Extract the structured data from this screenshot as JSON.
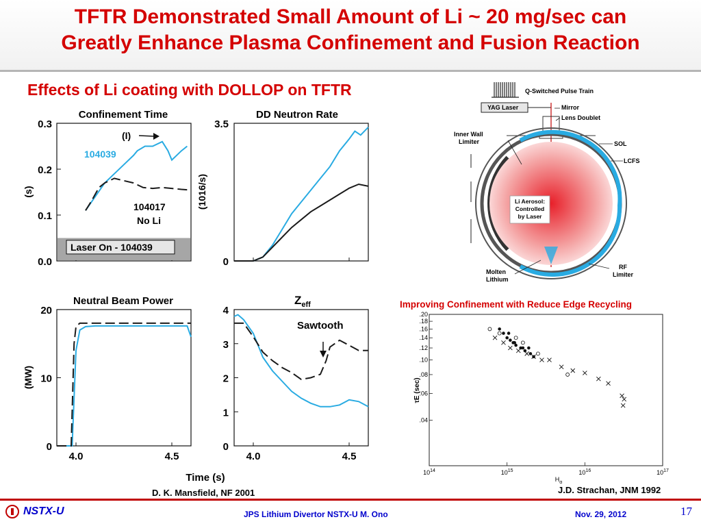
{
  "slide": {
    "title_line1": "TFTR Demonstrated Small Amount of Li ~ 20 mg/sec can",
    "title_line2": "Greatly Enhance Plasma Confinement and Fusion Reaction",
    "subtitle": "Effects of Li coating with DOLLOP on TFTR",
    "citation_left": "D. K. Mansfield, NF 2001",
    "citation_right": "J.D. Strachan, JNM 1992",
    "recycling_caption": "Improving Confinement with Reduce Edge Recycling",
    "footer_logo": "NSTX-U",
    "footer_center": "JPS Lithium Divertor NSTX-U M. Ono",
    "footer_date": "Nov. 29, 2012",
    "page_number": "17"
  },
  "colors": {
    "title": "#d40000",
    "blue": "#29abe2",
    "black": "#1a1a1a",
    "footer_blue": "#0000cc"
  },
  "shared_x": {
    "label": "Time (s)",
    "ticks": [
      "4.0",
      "4.5"
    ]
  },
  "diagram": {
    "labels": [
      "Q-Switched Pulse Train",
      "YAG Laser",
      "Mirror",
      "Lens Doublet",
      "Inner Wall",
      "Limiter",
      "SOL",
      "LCFS",
      "Li Aerosol:",
      "Controlled",
      "by Laser",
      "Molten",
      "Lithium",
      "RF",
      "Limiter"
    ]
  },
  "chart_data": [
    {
      "type": "line",
      "title": "Confinement Time",
      "ylabel": "(s)",
      "ylim": [
        0,
        0.3
      ],
      "yticks": [
        "0.0",
        "0.1",
        "0.2",
        "0.3"
      ],
      "xlim": [
        3.9,
        4.6
      ],
      "annotations": [
        "(I)",
        "104039",
        "104017",
        "No Li"
      ],
      "box_label": "Laser On - 104039",
      "series": [
        {
          "name": "104039",
          "color": "#29abe2",
          "dash": false,
          "x": [
            4.05,
            4.1,
            4.15,
            4.2,
            4.25,
            4.3,
            4.32,
            4.36,
            4.4,
            4.45,
            4.48,
            4.5,
            4.55,
            4.58
          ],
          "y": [
            0.11,
            0.14,
            0.17,
            0.19,
            0.21,
            0.23,
            0.24,
            0.25,
            0.25,
            0.26,
            0.24,
            0.22,
            0.24,
            0.25
          ]
        },
        {
          "name": "104017",
          "color": "#1a1a1a",
          "dash": true,
          "x": [
            4.05,
            4.08,
            4.12,
            4.15,
            4.2,
            4.25,
            4.3,
            4.35,
            4.4,
            4.45,
            4.5,
            4.55,
            4.58
          ],
          "y": [
            0.11,
            0.13,
            0.16,
            0.17,
            0.18,
            0.175,
            0.17,
            0.16,
            0.158,
            0.16,
            0.158,
            0.156,
            0.155
          ]
        }
      ]
    },
    {
      "type": "line",
      "title": "DD Neutron Rate",
      "ylabel": "(1016/s)",
      "ylim": [
        0,
        3.5
      ],
      "yticks": [
        "0",
        "3.5"
      ],
      "xlim": [
        3.9,
        4.6
      ],
      "series": [
        {
          "name": "Li",
          "color": "#29abe2",
          "dash": false,
          "x": [
            3.9,
            4.0,
            4.05,
            4.1,
            4.15,
            4.2,
            4.25,
            4.3,
            4.35,
            4.4,
            4.45,
            4.5,
            4.53,
            4.56,
            4.6
          ],
          "y": [
            0.0,
            0.0,
            0.1,
            0.4,
            0.8,
            1.2,
            1.5,
            1.8,
            2.1,
            2.4,
            2.8,
            3.1,
            3.3,
            3.2,
            3.4
          ]
        },
        {
          "name": "No Li",
          "color": "#1a1a1a",
          "dash": false,
          "x": [
            3.9,
            4.0,
            4.05,
            4.1,
            4.15,
            4.2,
            4.25,
            4.3,
            4.35,
            4.4,
            4.45,
            4.5,
            4.55,
            4.6
          ],
          "y": [
            0.0,
            0.0,
            0.1,
            0.35,
            0.6,
            0.85,
            1.05,
            1.25,
            1.4,
            1.55,
            1.7,
            1.85,
            1.95,
            1.9
          ]
        }
      ]
    },
    {
      "type": "line",
      "title": "Neutral Beam Power",
      "ylabel": "(MW)",
      "ylim": [
        0,
        20
      ],
      "yticks": [
        "0",
        "10",
        "20"
      ],
      "xlim": [
        3.9,
        4.6
      ],
      "series": [
        {
          "name": "104039",
          "color": "#29abe2",
          "dash": false,
          "x": [
            3.9,
            3.98,
            4.0,
            4.02,
            4.05,
            4.1,
            4.2,
            4.3,
            4.4,
            4.5,
            4.58,
            4.6
          ],
          "y": [
            0,
            0,
            14,
            17,
            17.5,
            17.6,
            17.6,
            17.6,
            17.6,
            17.6,
            17.6,
            16
          ]
        },
        {
          "name": "104017",
          "color": "#1a1a1a",
          "dash": true,
          "x": [
            3.9,
            3.975,
            3.99,
            4.0,
            4.02,
            4.1,
            4.2,
            4.3,
            4.4,
            4.5,
            4.6
          ],
          "y": [
            0,
            0,
            15,
            17.5,
            18,
            18,
            18,
            18,
            18,
            18,
            18
          ]
        }
      ]
    },
    {
      "type": "line",
      "title": "Zeff",
      "ylim": [
        0,
        4
      ],
      "yticks": [
        "0",
        "1",
        "2",
        "3",
        "4"
      ],
      "xlim": [
        3.9,
        4.6
      ],
      "annotations": [
        "Sawtooth"
      ],
      "series": [
        {
          "name": "104039",
          "color": "#29abe2",
          "dash": false,
          "x": [
            3.9,
            3.92,
            3.95,
            4.0,
            4.05,
            4.1,
            4.15,
            4.2,
            4.25,
            4.3,
            4.35,
            4.4,
            4.45,
            4.5,
            4.55,
            4.6
          ],
          "y": [
            3.8,
            3.85,
            3.7,
            3.3,
            2.6,
            2.2,
            1.9,
            1.6,
            1.4,
            1.25,
            1.15,
            1.15,
            1.2,
            1.35,
            1.3,
            1.15
          ]
        },
        {
          "name": "104017",
          "color": "#1a1a1a",
          "dash": true,
          "x": [
            3.9,
            3.95,
            4.0,
            4.05,
            4.1,
            4.15,
            4.2,
            4.25,
            4.3,
            4.35,
            4.38,
            4.4,
            4.45,
            4.5,
            4.55,
            4.6
          ],
          "y": [
            3.6,
            3.6,
            3.2,
            2.75,
            2.5,
            2.3,
            2.15,
            1.95,
            2.0,
            2.1,
            2.5,
            2.9,
            3.1,
            2.95,
            2.8,
            2.8
          ]
        }
      ]
    },
    {
      "type": "scatter",
      "ylabel": "τE (sec)",
      "xlabel": "Hα",
      "xscale": "log",
      "yscale": "log",
      "xlim": [
        100000000000000.0,
        1e+17
      ],
      "ylim": [
        0.02,
        0.2
      ],
      "xticks": [
        "1014",
        "1015",
        "1016",
        "1017"
      ],
      "yticks": [
        ".20",
        ".18",
        ".16",
        ".14",
        ".12",
        ".10",
        ".08",
        ".06",
        ".04"
      ],
      "series": [
        {
          "name": "filled",
          "marker": "dot",
          "x": [
            800000000000000.0,
            900000000000000.0,
            1000000000000000.0,
            1100000000000000.0,
            1200000000000000.0,
            1300000000000000.0,
            1500000000000000.0,
            1700000000000000.0,
            2000000000000000.0,
            2200000000000000.0,
            1050000000000000.0,
            1250000000000000.0,
            1600000000000000.0,
            1900000000000000.0
          ],
          "y": [
            0.16,
            0.15,
            0.14,
            0.135,
            0.13,
            0.125,
            0.12,
            0.115,
            0.11,
            0.105,
            0.15,
            0.13,
            0.12,
            0.12
          ]
        },
        {
          "name": "cross",
          "marker": "x",
          "x": [
            700000000000000.0,
            900000000000000.0,
            1100000000000000.0,
            1400000000000000.0,
            1800000000000000.0,
            2200000000000000.0,
            2800000000000000.0,
            3500000000000000.0,
            5000000000000000.0,
            7000000000000000.0,
            1e+16,
            1.5e+16,
            2e+16,
            3e+16,
            3.2e+16,
            3.1e+16
          ],
          "y": [
            0.14,
            0.13,
            0.12,
            0.115,
            0.11,
            0.105,
            0.1,
            0.1,
            0.09,
            0.085,
            0.082,
            0.075,
            0.07,
            0.058,
            0.055,
            0.05
          ]
        },
        {
          "name": "open",
          "marker": "circle",
          "x": [
            600000000000000.0,
            800000000000000.0,
            1300000000000000.0,
            1600000000000000.0,
            2500000000000000.0,
            6000000000000000.0
          ],
          "y": [
            0.16,
            0.15,
            0.14,
            0.13,
            0.11,
            0.08
          ]
        }
      ]
    }
  ]
}
